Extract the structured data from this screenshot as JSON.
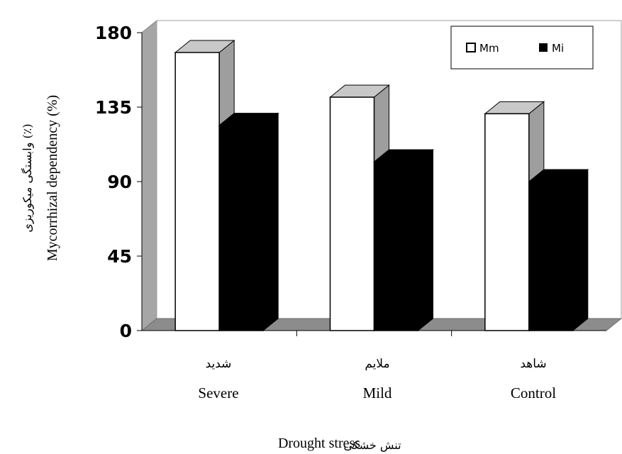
{
  "chart_data": {
    "type": "bar",
    "style": "3d-clustered-column",
    "categories": [
      {
        "fa": "شدید",
        "en": "Severe"
      },
      {
        "fa": "ملایم",
        "en": "Mild"
      },
      {
        "fa": "شاهد",
        "en": "Control"
      }
    ],
    "series": [
      {
        "name": "Mm",
        "color": "#ffffff",
        "values": [
          168,
          141,
          131
        ]
      },
      {
        "name": "Mi",
        "color": "#000000",
        "values": [
          124,
          102,
          90
        ]
      }
    ],
    "ylim": [
      0,
      180
    ],
    "yticks": [
      "0",
      "45",
      "90",
      "135",
      "180"
    ],
    "ylabel": {
      "en": "Mycorrhizal dependency (%)",
      "fa": "وابستگی میکوریزی (٪)"
    },
    "xlabel": {
      "en": "Drought stress",
      "fa": "تنش خشکی"
    },
    "legend_position": "top-right",
    "grid": false
  }
}
